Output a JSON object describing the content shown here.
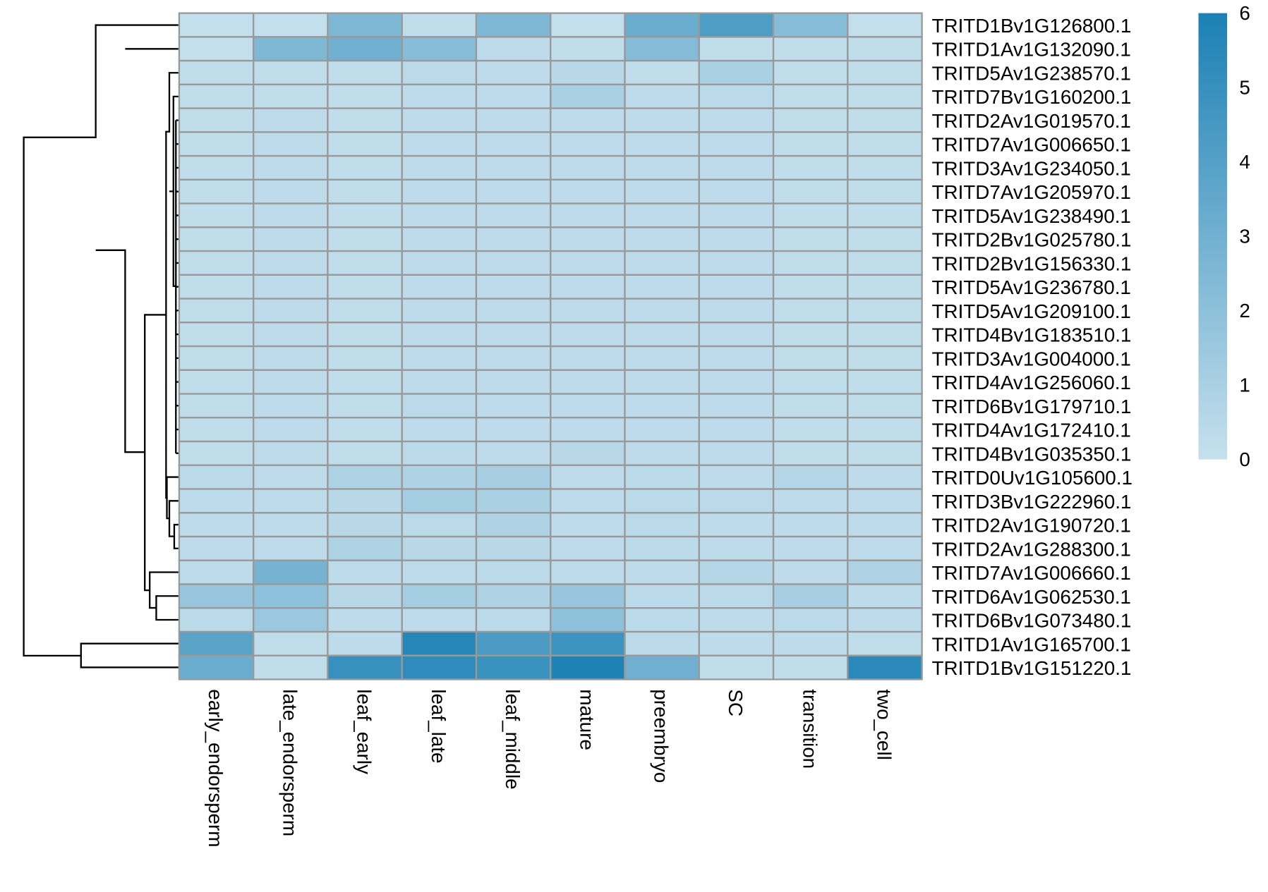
{
  "chart_data": {
    "type": "heatmap",
    "rows": [
      "TRITD1Bv1G126800.1",
      "TRITD1Av1G132090.1",
      "TRITD5Av1G238570.1",
      "TRITD7Bv1G160200.1",
      "TRITD2Av1G019570.1",
      "TRITD7Av1G006650.1",
      "TRITD3Av1G234050.1",
      "TRITD7Av1G205970.1",
      "TRITD5Av1G238490.1",
      "TRITD2Bv1G025780.1",
      "TRITD2Bv1G156330.1",
      "TRITD5Av1G236780.1",
      "TRITD5Av1G209100.1",
      "TRITD4Bv1G183510.1",
      "TRITD3Av1G004000.1",
      "TRITD4Av1G256060.1",
      "TRITD6Bv1G179710.1",
      "TRITD4Av1G172410.1",
      "TRITD4Bv1G035350.1",
      "TRITD0Uv1G105600.1",
      "TRITD3Bv1G222960.1",
      "TRITD2Av1G190720.1",
      "TRITD2Av1G288300.1",
      "TRITD7Av1G006660.1",
      "TRITD6Av1G062530.1",
      "TRITD6Bv1G073480.1",
      "TRITD1Av1G165700.1",
      "TRITD1Bv1G151220.1"
    ],
    "columns": [
      "early_endorsperm",
      "late_endorsperm",
      "leaf_early",
      "leaf_late",
      "leaf_middle",
      "mature",
      "preembryo",
      "SC",
      "transition",
      "two_cell"
    ],
    "values": [
      [
        0.1,
        0.1,
        2.5,
        0.2,
        2.5,
        0.1,
        3.2,
        4.2,
        2.2,
        0.1
      ],
      [
        0.1,
        2.5,
        3.0,
        2.2,
        0.3,
        0.2,
        2.3,
        0.2,
        0.2,
        0.2
      ],
      [
        0.2,
        0.2,
        0.2,
        0.4,
        0.3,
        0.5,
        0.2,
        1.0,
        0.2,
        0.2
      ],
      [
        0.2,
        0.2,
        0.2,
        0.3,
        0.3,
        1.0,
        0.3,
        0.4,
        0.2,
        0.2
      ],
      [
        0.2,
        0.3,
        0.2,
        0.3,
        0.3,
        0.3,
        0.3,
        0.3,
        0.2,
        0.2
      ],
      [
        0.2,
        0.3,
        0.2,
        0.3,
        0.3,
        0.3,
        0.3,
        0.3,
        0.2,
        0.2
      ],
      [
        0.2,
        0.3,
        0.2,
        0.3,
        0.3,
        0.3,
        0.3,
        0.3,
        0.2,
        0.2
      ],
      [
        0.2,
        0.3,
        0.2,
        0.3,
        0.3,
        0.3,
        0.3,
        0.3,
        0.2,
        0.2
      ],
      [
        0.2,
        0.3,
        0.2,
        0.3,
        0.3,
        0.3,
        0.3,
        0.3,
        0.2,
        0.2
      ],
      [
        0.2,
        0.3,
        0.2,
        0.3,
        0.3,
        0.3,
        0.3,
        0.3,
        0.2,
        0.2
      ],
      [
        0.2,
        0.3,
        0.2,
        0.3,
        0.3,
        0.3,
        0.3,
        0.3,
        0.2,
        0.2
      ],
      [
        0.2,
        0.3,
        0.2,
        0.3,
        0.3,
        0.3,
        0.3,
        0.3,
        0.2,
        0.2
      ],
      [
        0.2,
        0.3,
        0.2,
        0.3,
        0.3,
        0.3,
        0.3,
        0.3,
        0.2,
        0.2
      ],
      [
        0.2,
        0.3,
        0.2,
        0.3,
        0.3,
        0.3,
        0.3,
        0.3,
        0.2,
        0.2
      ],
      [
        0.2,
        0.3,
        0.2,
        0.3,
        0.3,
        0.3,
        0.3,
        0.3,
        0.2,
        0.2
      ],
      [
        0.2,
        0.3,
        0.2,
        0.3,
        0.3,
        0.3,
        0.3,
        0.3,
        0.2,
        0.2
      ],
      [
        0.2,
        0.3,
        0.2,
        0.4,
        0.3,
        0.3,
        0.3,
        0.3,
        0.2,
        0.2
      ],
      [
        0.2,
        0.3,
        0.2,
        0.3,
        0.3,
        0.3,
        0.3,
        0.3,
        0.2,
        0.2
      ],
      [
        0.2,
        0.3,
        0.2,
        0.4,
        0.3,
        0.5,
        0.3,
        0.3,
        0.2,
        0.2
      ],
      [
        0.4,
        0.3,
        0.9,
        0.8,
        1.1,
        0.3,
        0.4,
        0.3,
        0.6,
        0.3
      ],
      [
        0.3,
        0.3,
        0.5,
        1.2,
        1.0,
        0.3,
        0.4,
        0.4,
        0.3,
        0.3
      ],
      [
        0.3,
        0.3,
        0.5,
        0.4,
        0.8,
        0.3,
        0.4,
        0.3,
        0.3,
        0.3
      ],
      [
        0.3,
        0.3,
        0.9,
        0.5,
        0.5,
        0.3,
        0.4,
        0.3,
        0.3,
        0.3
      ],
      [
        0.3,
        2.8,
        0.3,
        0.3,
        0.4,
        0.3,
        0.3,
        0.6,
        0.3,
        0.8
      ],
      [
        1.6,
        2.0,
        0.5,
        1.2,
        0.8,
        1.6,
        0.4,
        0.4,
        1.1,
        0.3
      ],
      [
        0.4,
        1.5,
        0.3,
        0.3,
        0.4,
        2.0,
        0.4,
        0.3,
        0.4,
        0.3
      ],
      [
        3.8,
        0.2,
        0.3,
        5.6,
        4.3,
        4.8,
        0.4,
        0.3,
        0.3,
        0.2
      ],
      [
        3.2,
        0.2,
        5.0,
        5.3,
        4.9,
        5.9,
        3.0,
        0.2,
        0.2,
        5.4
      ]
    ],
    "zlim": [
      0,
      6
    ],
    "zticks": [
      0,
      1,
      2,
      3,
      4,
      5,
      6
    ],
    "colors": [
      "#c6e0ed",
      "#1b80b4"
    ]
  }
}
